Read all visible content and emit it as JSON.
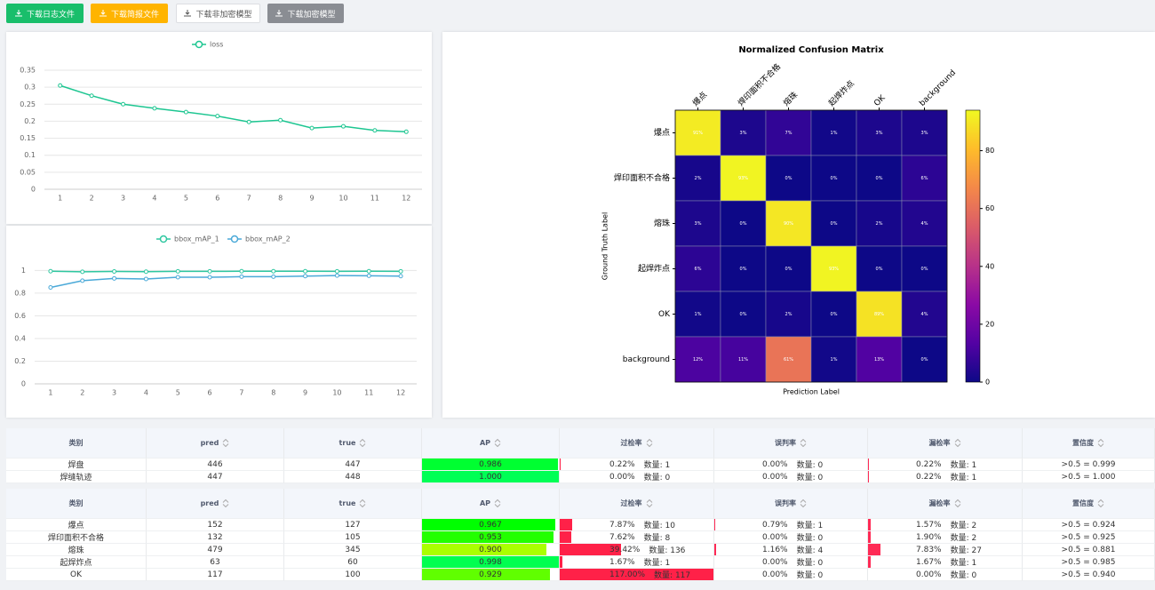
{
  "buttons": [
    "下载日志文件",
    "下载简报文件",
    "下载非加密模型",
    "下载加密模型"
  ],
  "chart_data": [
    {
      "type": "line",
      "categories": [
        "1",
        "2",
        "3",
        "4",
        "5",
        "6",
        "7",
        "8",
        "9",
        "10",
        "11",
        "12"
      ],
      "series": [
        {
          "name": "loss",
          "color": "#1dc691",
          "values": [
            0.305,
            0.275,
            0.25,
            0.238,
            0.227,
            0.215,
            0.198,
            0.203,
            0.18,
            0.185,
            0.173,
            0.169
          ]
        }
      ],
      "ylim": [
        0,
        0.35
      ],
      "yticks": [
        0,
        0.05,
        0.1,
        0.15,
        0.2,
        0.25,
        0.3,
        0.35
      ],
      "grid": true,
      "legend": "top"
    },
    {
      "type": "line",
      "categories": [
        "1",
        "2",
        "3",
        "4",
        "5",
        "6",
        "7",
        "8",
        "9",
        "10",
        "11",
        "12"
      ],
      "series": [
        {
          "name": "bbox_mAP_1",
          "color": "#2ec7a0",
          "values": [
            0.993,
            0.988,
            0.991,
            0.989,
            0.992,
            0.992,
            0.993,
            0.993,
            0.993,
            0.992,
            0.993,
            0.992
          ]
        },
        {
          "name": "bbox_mAP_2",
          "color": "#4aa9d8",
          "values": [
            0.85,
            0.91,
            0.93,
            0.925,
            0.94,
            0.94,
            0.945,
            0.945,
            0.95,
            0.955,
            0.953,
            0.95
          ]
        }
      ],
      "ylim": [
        0,
        1.05
      ],
      "yticks": [
        0,
        0.2,
        0.4,
        0.6,
        0.8,
        1
      ],
      "grid": true,
      "legend": "top"
    },
    {
      "type": "heatmap",
      "title": "Normalized Confusion Matrix",
      "xlabel": "Prediction Label",
      "ylabel": "Ground Truth Label",
      "x_categories": [
        "爆点",
        "焊印面积不合格",
        "熔珠",
        "起焊炸点",
        "OK",
        "background"
      ],
      "y_categories": [
        "爆点",
        "焊印面积不合格",
        "熔珠",
        "起焊炸点",
        "OK",
        "background"
      ],
      "values": [
        [
          91,
          3,
          7,
          1,
          3,
          3
        ],
        [
          2,
          93,
          0,
          0,
          0,
          6
        ],
        [
          3,
          0,
          90,
          0,
          2,
          4
        ],
        [
          6,
          0,
          0,
          93,
          0,
          0
        ],
        [
          1,
          0,
          2,
          0,
          89,
          4
        ],
        [
          12,
          11,
          61,
          1,
          13,
          0
        ]
      ],
      "value_labels": [
        [
          "91%",
          "3%",
          "7%",
          "1%",
          "3%",
          "3%"
        ],
        [
          "2%",
          "93%",
          "0%",
          "0%",
          "0%",
          "6%"
        ],
        [
          "3%",
          "0%",
          "90%",
          "0%",
          "2%",
          "4%"
        ],
        [
          "6%",
          "0%",
          "0%",
          "93%",
          "0%",
          "0%"
        ],
        [
          "1%",
          "0%",
          "2%",
          "0%",
          "89%",
          "4%"
        ],
        [
          "12%",
          "11%",
          "61%",
          "1%",
          "13%",
          "0%"
        ]
      ],
      "clim": [
        0,
        94
      ],
      "cticks": [
        0,
        20,
        40,
        60,
        80
      ],
      "colormap": "plasma"
    }
  ],
  "tables": [
    {
      "headers": [
        "类别",
        "pred",
        "true",
        "AP",
        "过检率",
        "误判率",
        "漏检率",
        "置信度"
      ],
      "rows": [
        [
          "焊盘",
          "446",
          "447",
          "0.986",
          "0.22%",
          "数量: 1",
          "0.00%",
          "数量: 0",
          "0.22%",
          "数量: 1",
          ">0.5 = 0.999"
        ],
        [
          "焊缝轨迹",
          "447",
          "448",
          "1.000",
          "0.00%",
          "数量: 0",
          "0.00%",
          "数量: 0",
          "0.22%",
          "数量: 1",
          ">0.5 = 1.000"
        ]
      ]
    },
    {
      "headers": [
        "类别",
        "pred",
        "true",
        "AP",
        "过检率",
        "误判率",
        "漏检率",
        "置信度"
      ],
      "rows": [
        [
          "爆点",
          "152",
          "127",
          "0.967",
          "7.87%",
          "数量: 10",
          "0.79%",
          "数量: 1",
          "1.57%",
          "数量: 2",
          ">0.5 = 0.924"
        ],
        [
          "焊印面积不合格",
          "132",
          "105",
          "0.953",
          "7.62%",
          "数量: 8",
          "0.00%",
          "数量: 0",
          "1.90%",
          "数量: 2",
          ">0.5 = 0.925"
        ],
        [
          "熔珠",
          "479",
          "345",
          "0.900",
          "39.42%",
          "数量: 136",
          "1.16%",
          "数量: 4",
          "7.83%",
          "数量: 27",
          ">0.5 = 0.881"
        ],
        [
          "起焊炸点",
          "63",
          "60",
          "0.998",
          "1.67%",
          "数量: 1",
          "0.00%",
          "数量: 0",
          "1.67%",
          "数量: 1",
          ">0.5 = 0.985"
        ],
        [
          "OK",
          "117",
          "100",
          "0.929",
          "117.00%",
          "数量: 117",
          "0.00%",
          "数量: 0",
          "0.00%",
          "数量: 0",
          ">0.5 = 0.940"
        ]
      ]
    }
  ]
}
